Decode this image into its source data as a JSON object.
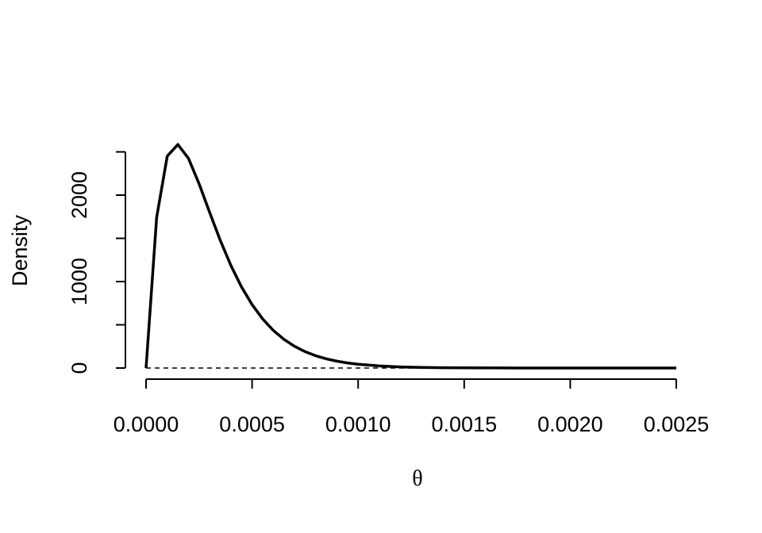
{
  "chart_data": {
    "type": "line",
    "x_label": "θ",
    "y_label": "Density",
    "x": [
      0,
      5e-05,
      0.0001,
      0.00015,
      0.0002,
      0.00025,
      0.0003,
      0.00035,
      0.0004,
      0.00045,
      0.0005,
      0.00055,
      0.0006,
      0.00065,
      0.0007,
      0.00075,
      0.0008,
      0.00085,
      0.0009,
      0.00095,
      0.001,
      0.0011,
      0.0012,
      0.0013,
      0.0014,
      0.0015,
      0.00175,
      0.002,
      0.0025
    ],
    "series": [
      {
        "color": "#000000",
        "values": [
          0,
          1742.8,
          2451.3,
          2585.9,
          2424.9,
          2131.6,
          1799.0,
          1476.0,
          1186.4,
          938.6,
          733.5,
          567.4,
          435.3,
          331.7,
          251.2,
          189.3,
          142.0,
          106.1,
          79.0,
          58.7,
          43.4,
          23.6,
          12.7,
          6.8,
          3.6,
          1.9,
          0.4,
          0.1,
          0
        ]
      }
    ],
    "hline": 0,
    "xlim": [
      0,
      0.0025
    ],
    "ylim": [
      0,
      2578
    ],
    "xticks": [
      {
        "value": 0,
        "label": "0.0000"
      },
      {
        "value": 0.0005,
        "label": "0.0005"
      },
      {
        "value": 0.001,
        "label": "0.0010"
      },
      {
        "value": 0.0015,
        "label": "0.0015"
      },
      {
        "value": 0.002,
        "label": "0.0020"
      },
      {
        "value": 0.0025,
        "label": "0.0025"
      }
    ],
    "yticks": [
      0,
      {
        "value": 500,
        "label": null
      },
      1000,
      {
        "value": 1500,
        "label": null
      },
      2000,
      {
        "value": 2500,
        "label": null
      }
    ]
  }
}
